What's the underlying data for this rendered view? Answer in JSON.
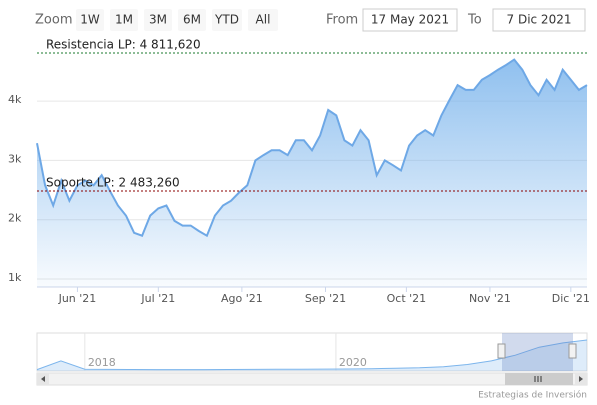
{
  "chart_data": {
    "type": "area",
    "range_selector": {
      "zoom_label": "Zoom",
      "buttons": [
        "1W",
        "1M",
        "3M",
        "6M",
        "YTD",
        "All"
      ],
      "from_label": "From",
      "from": "17 May 2021",
      "to_label": "To",
      "to": "7 Dic 2021"
    },
    "series": [
      {
        "color": "#6ea8e6",
        "values": [
          3290,
          2580,
          2240,
          2660,
          2320,
          2580,
          2660,
          2580,
          2750,
          2490,
          2240,
          2070,
          1780,
          1730,
          2070,
          2190,
          2240,
          1980,
          1900,
          1900,
          1810,
          1730,
          2070,
          2240,
          2320,
          2460,
          2580,
          3000,
          3090,
          3170,
          3170,
          3090,
          3340,
          3340,
          3170,
          3420,
          3850,
          3760,
          3340,
          3250,
          3510,
          3340,
          2750,
          3000,
          2920,
          2830,
          3250,
          3420,
          3510,
          3420,
          3760,
          4020,
          4270,
          4190,
          4190,
          4360,
          4440,
          4530,
          4610,
          4700,
          4530,
          4270,
          4100,
          4360,
          4190,
          4530,
          4360,
          4190,
          4270
        ]
      }
    ],
    "xlim": [
      0,
      68
    ],
    "xticks": [
      {
        "value": 5,
        "label": "Jun '21"
      },
      {
        "value": 15,
        "label": "Jul '21"
      },
      {
        "value": 25.33,
        "label": "Ago '21"
      },
      {
        "value": 35.67,
        "label": "Sep '21"
      },
      {
        "value": 45.67,
        "label": "Oct '21"
      },
      {
        "value": 56,
        "label": "Nov '21"
      },
      {
        "value": 66,
        "label": "Dic '21"
      }
    ],
    "ylim": [
      865,
      5200
    ],
    "yticks": [
      {
        "value": 1000,
        "label": "1k"
      },
      {
        "value": 2000,
        "label": "2k"
      },
      {
        "value": 3000,
        "label": "3k"
      },
      {
        "value": 4000,
        "label": "4k"
      }
    ],
    "grid": true,
    "plot_lines": [
      {
        "value": 4811.62,
        "label": "Resistencia LP: 4 811,620",
        "color": "#1a7a2e"
      },
      {
        "value": 2483.26,
        "label": "Soporte LP: 2 483,260",
        "color": "#8b0000"
      }
    ],
    "navigator": {
      "values": [
        200,
        1400,
        250,
        220,
        210,
        200,
        190,
        200,
        210,
        220,
        230,
        240,
        260,
        280,
        320,
        380,
        450,
        600,
        900,
        1400,
        2200,
        3300,
        3900,
        4300
      ],
      "xlim": [
        0,
        23
      ],
      "ylim": [
        0,
        5000
      ],
      "xticks": [
        {
          "value": 2,
          "label": "2018"
        },
        {
          "value": 12.5,
          "label": "2020"
        }
      ]
    },
    "credits": "Estrategias de Inversión"
  }
}
